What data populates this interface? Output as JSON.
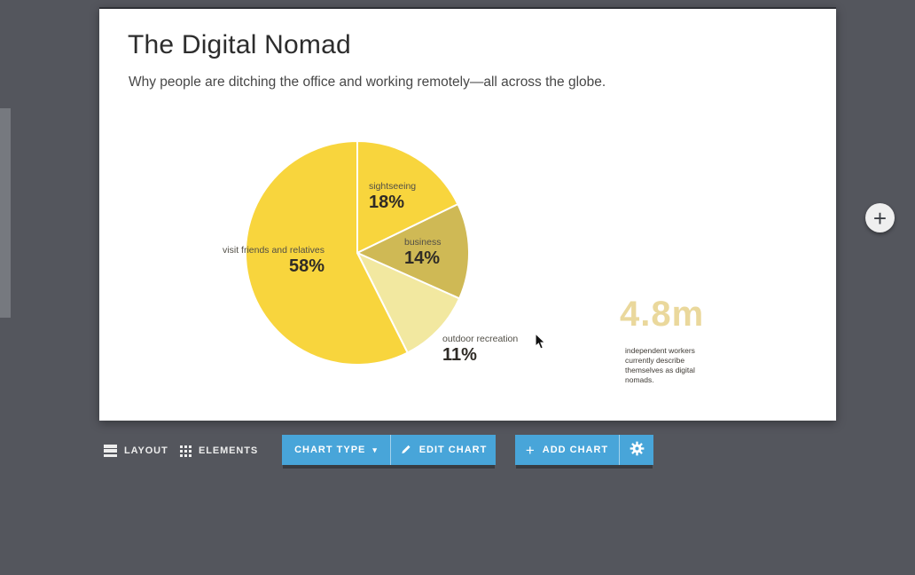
{
  "workspace": {
    "background_color": "#54565d",
    "accent_blue": "#48a5d9",
    "canvas_color": "#ffffff"
  },
  "slide": {
    "title": "The Digital Nomad",
    "subtitle": "Why people are ditching the office and working remotely—all across the globe.",
    "stat": {
      "value": "4.8m",
      "description": "independent workers currently describe themselves as digital nomads."
    }
  },
  "chart_data": {
    "type": "pie",
    "title": "",
    "start_angle_deg": 0,
    "direction": "clockwise",
    "divider_color": "#ffffff",
    "slices": [
      {
        "label": "sightseeing",
        "value": 18,
        "pct": "18%",
        "color": "#f8d53d"
      },
      {
        "label": "business",
        "value": 14,
        "pct": "14%",
        "color": "#cfb955"
      },
      {
        "label": "outdoor recreation",
        "value": 11,
        "pct": "11%",
        "color": "#f2e8a0"
      },
      {
        "label": "visit friends and relatives",
        "value": 58,
        "pct": "58%",
        "color": "#f8d53d"
      }
    ]
  },
  "toolbar": {
    "layout": "LAYOUT",
    "elements": "ELEMENTS",
    "chart_type": "CHART TYPE",
    "edit_chart": "EDIT CHART",
    "add_chart": "ADD CHART",
    "icons": {
      "layout": "rows-icon",
      "elements": "grid-dots-icon",
      "caret": "▾",
      "edit": "pencil-icon",
      "add": "+",
      "settings": "gear-icon"
    }
  },
  "floating_add_button": {
    "glyph": "+"
  }
}
